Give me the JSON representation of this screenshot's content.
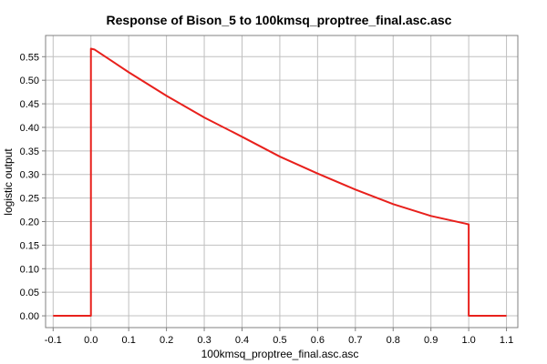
{
  "chart_data": {
    "type": "line",
    "title": "Response of Bison_5 to 100kmsq_proptree_final.asc.asc",
    "xlabel": "100kmsq_proptree_final.asc.asc",
    "ylabel": "logistic output",
    "xlim": [
      -0.12,
      1.13
    ],
    "ylim": [
      -0.025,
      0.595
    ],
    "grid": true,
    "x_ticks": [
      -0.1,
      0.0,
      0.1,
      0.2,
      0.3,
      0.4,
      0.5,
      0.6,
      0.7,
      0.8,
      0.9,
      1.0,
      1.1
    ],
    "x_tick_labels": [
      "-0.1",
      "0.0",
      "0.1",
      "0.2",
      "0.3",
      "0.4",
      "0.5",
      "0.6",
      "0.7",
      "0.8",
      "0.9",
      "1.0",
      "1.1"
    ],
    "y_ticks": [
      0.0,
      0.05,
      0.1,
      0.15,
      0.2,
      0.25,
      0.3,
      0.35,
      0.4,
      0.45,
      0.5,
      0.55
    ],
    "y_tick_labels": [
      "0.00",
      "0.05",
      "0.10",
      "0.15",
      "0.20",
      "0.25",
      "0.30",
      "0.35",
      "0.40",
      "0.45",
      "0.50",
      "0.55"
    ],
    "series": [
      {
        "color": "#e8201c",
        "x": [
          -0.1,
          0.0,
          0.0,
          0.01,
          0.1,
          0.2,
          0.3,
          0.4,
          0.5,
          0.6,
          0.7,
          0.8,
          0.9,
          0.99,
          1.0,
          1.0,
          1.1
        ],
        "y": [
          0.0,
          0.0,
          0.567,
          0.565,
          0.517,
          0.467,
          0.421,
          0.38,
          0.338,
          0.302,
          0.268,
          0.237,
          0.212,
          0.196,
          0.194,
          0.0,
          0.0
        ]
      }
    ]
  }
}
